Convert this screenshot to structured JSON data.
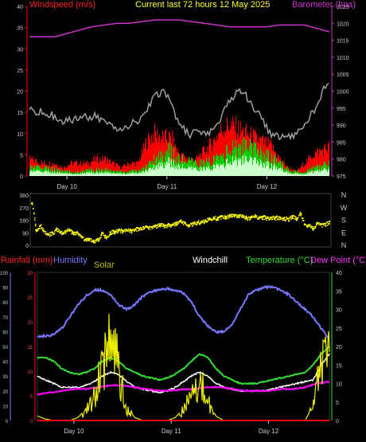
{
  "header": {
    "windspeed_label": "Windspeed (m/s)",
    "title": "Current last 72 hours 12 May 2025",
    "barometer_label": "Barometer (hpa)"
  },
  "bottom_header": {
    "rainfall_label": "Rainfall (mm)",
    "humidity_label": "Humidity",
    "solar_label": "Solar",
    "windchill_label": "Windchill",
    "temperature_label": "Temperature (°C)",
    "dewpoint_label": "Dew Point (°C)"
  },
  "colors": {
    "windspeed": "#ff0000",
    "gust": "#a0a0a0",
    "avg_wind": "#00cc00",
    "calm": "#ccffcc",
    "barometer": "#cc33cc",
    "wind_direction": "#ffff00",
    "rainfall": "#ff0000",
    "humidity": "#7777ff",
    "solar": "#eeee00",
    "windchill": "#ffffff",
    "temperature": "#33dd33",
    "dewpoint": "#ff00ff",
    "axis": "#cccccc"
  },
  "chart_data": [
    {
      "type": "line",
      "title": "Current last 72 hours 12 May 2025",
      "x_unit": "hours",
      "xlim": [
        0,
        72
      ],
      "day_labels": [
        {
          "label": "Day 10",
          "x": 9
        },
        {
          "label": "Day 11",
          "x": 33
        },
        {
          "label": "Day 12",
          "x": 57
        }
      ],
      "y_left": {
        "label": "Windspeed (m/s)",
        "ylim": [
          0,
          40
        ],
        "ticks": [
          "0",
          "5",
          "10",
          "15",
          "20",
          "25",
          "30",
          "35",
          "40"
        ]
      },
      "y_right": {
        "label": "Barometer (hpa)",
        "ylim": [
          975,
          1025
        ],
        "ticks": [
          "975",
          "980",
          "985",
          "990",
          "995",
          "1000",
          "1005",
          "1010",
          "1015",
          "1020",
          "1025"
        ]
      },
      "series": [
        {
          "key": "wind",
          "axis": "left",
          "x": [
            0,
            3,
            6,
            8,
            10,
            12,
            14,
            16,
            18,
            20,
            22,
            24,
            26,
            28,
            30,
            32,
            34,
            36,
            38,
            40,
            42,
            44,
            46,
            48,
            50,
            52,
            54,
            56,
            58,
            60,
            62,
            64,
            66,
            68,
            70,
            72
          ],
          "values": [
            4,
            3,
            3,
            2,
            3,
            3,
            3,
            4,
            4,
            3,
            2,
            3,
            3,
            8,
            10,
            9,
            9,
            5,
            4,
            4,
            6,
            8,
            11,
            12,
            11,
            10,
            9,
            8,
            7,
            4,
            2,
            1,
            3,
            5,
            6,
            7
          ]
        },
        {
          "key": "gust",
          "axis": "left",
          "x": [
            0,
            2,
            4,
            6,
            8,
            10,
            12,
            14,
            16,
            18,
            20,
            22,
            24,
            26,
            28,
            30,
            32,
            34,
            36,
            38,
            40,
            42,
            44,
            46,
            48,
            50,
            52,
            54,
            56,
            58,
            60,
            62,
            64,
            66,
            68,
            70,
            72
          ],
          "values": [
            16,
            15,
            15,
            14,
            13,
            13,
            14,
            14,
            14,
            13,
            12,
            11,
            12,
            13,
            15,
            19,
            20,
            17,
            12,
            10,
            10,
            10,
            11,
            14,
            18,
            20,
            19,
            16,
            13,
            10,
            9,
            9,
            10,
            12,
            15,
            19,
            23
          ]
        },
        {
          "key": "avg_wind",
          "axis": "left",
          "x": [
            0,
            3,
            6,
            9,
            12,
            15,
            18,
            21,
            24,
            27,
            30,
            33,
            36,
            39,
            42,
            45,
            48,
            51,
            54,
            57,
            60,
            63,
            66,
            69,
            72
          ],
          "values": [
            2,
            2,
            1.5,
            1,
            1,
            1.5,
            1.5,
            1,
            1,
            1.5,
            4,
            6,
            4,
            3,
            3,
            4,
            6,
            7,
            6,
            5,
            3,
            1,
            1,
            2,
            3
          ]
        },
        {
          "key": "barometer",
          "axis": "right",
          "x": [
            0,
            3,
            6,
            9,
            12,
            15,
            18,
            21,
            24,
            27,
            30,
            33,
            36,
            39,
            42,
            45,
            48,
            51,
            54,
            57,
            60,
            63,
            66,
            69,
            72
          ],
          "values": [
            1016,
            1016,
            1016,
            1017,
            1018,
            1019,
            1019.5,
            1020,
            1020,
            1020.5,
            1021,
            1021,
            1021,
            1020.5,
            1020,
            1019.5,
            1019,
            1019,
            1019,
            1019,
            1019.5,
            1019.5,
            1019.5,
            1018.5,
            1017.5
          ]
        }
      ]
    },
    {
      "type": "scatter",
      "title": "",
      "xlim": [
        0,
        72
      ],
      "y_left": {
        "ylim": [
          0,
          360
        ],
        "ticks": [
          "0",
          "90",
          "180",
          "270",
          "360"
        ]
      },
      "y_right_labels": [
        "N",
        "W",
        "S",
        "E",
        "N"
      ],
      "series": [
        {
          "key": "direction",
          "x": [
            0,
            1,
            2,
            3,
            4,
            5,
            6,
            7,
            8,
            9,
            10,
            11,
            12,
            13,
            14,
            15,
            16,
            17,
            18,
            19,
            20,
            21,
            22,
            23,
            24,
            25,
            26,
            27,
            28,
            29,
            30,
            31,
            32,
            33,
            34,
            35,
            36,
            37,
            38,
            39,
            40,
            41,
            42,
            43,
            44,
            45,
            46,
            47,
            48,
            49,
            50,
            51,
            52,
            53,
            54,
            55,
            56,
            57,
            58,
            59,
            60,
            61,
            62,
            63,
            64,
            65,
            66,
            67,
            68,
            69,
            70,
            71,
            72
          ],
          "values": [
            300,
            110,
            140,
            100,
            80,
            90,
            120,
            95,
            100,
            110,
            90,
            90,
            60,
            40,
            45,
            30,
            40,
            90,
            55,
            95,
            100,
            110,
            105,
            110,
            105,
            115,
            120,
            130,
            130,
            130,
            140,
            150,
            140,
            150,
            150,
            160,
            175,
            160,
            145,
            160,
            165,
            170,
            180,
            190,
            200,
            195,
            210,
            200,
            220,
            215,
            210,
            215,
            195,
            200,
            210,
            200,
            205,
            195,
            200,
            200,
            200,
            195,
            190,
            210,
            190,
            230,
            150,
            145,
            120,
            160,
            150,
            155,
            170
          ]
        }
      ]
    },
    {
      "type": "line",
      "title": "",
      "xlim": [
        0,
        72
      ],
      "y_far_left": {
        "label": "Humidity",
        "ylim": [
          0,
          100
        ],
        "ticks": [
          "0",
          "10",
          "20",
          "30",
          "40",
          "50",
          "60",
          "70",
          "80",
          "90",
          "100"
        ]
      },
      "y_left": {
        "label": "Rainfall (mm)",
        "ylim": [
          0,
          30
        ],
        "ticks": [
          "0",
          "5",
          "10",
          "15",
          "20",
          "25",
          "30"
        ]
      },
      "y_right": {
        "label": "Temperature (°C)",
        "ylim": [
          0,
          40
        ],
        "ticks": [
          "0",
          "5",
          "10",
          "15",
          "20",
          "25",
          "30",
          "35",
          "40"
        ]
      },
      "series": [
        {
          "key": "humidity",
          "axis": "far_left",
          "x": [
            0,
            2,
            4,
            6,
            8,
            10,
            12,
            14,
            16,
            18,
            20,
            22,
            24,
            26,
            28,
            30,
            32,
            34,
            36,
            38,
            40,
            42,
            44,
            46,
            48,
            50,
            52,
            54,
            56,
            58,
            60,
            62,
            64,
            66,
            68,
            70,
            72
          ],
          "values": [
            57,
            57,
            58,
            62,
            70,
            78,
            84,
            88,
            88,
            85,
            78,
            75,
            78,
            84,
            87,
            88,
            89,
            88,
            86,
            80,
            70,
            64,
            60,
            60,
            65,
            75,
            85,
            88,
            90,
            90,
            88,
            85,
            80,
            75,
            70,
            62,
            55
          ]
        },
        {
          "key": "solar",
          "axis": "far_left",
          "x": [
            0,
            2,
            4,
            6,
            8,
            10,
            12,
            14,
            16,
            18,
            20,
            22,
            24,
            26,
            28,
            30,
            32,
            34,
            36,
            38,
            40,
            42,
            44,
            46,
            48,
            50,
            52,
            54,
            56,
            58,
            60,
            62,
            64,
            66,
            68,
            70,
            72
          ],
          "values": [
            3,
            1,
            0,
            0,
            0,
            2,
            8,
            18,
            45,
            60,
            40,
            10,
            2,
            0,
            0,
            0,
            0,
            2,
            8,
            22,
            35,
            15,
            3,
            0,
            0,
            0,
            0,
            0,
            0,
            0,
            0,
            0,
            0,
            0,
            10,
            45,
            48
          ]
        },
        {
          "key": "rainfall",
          "axis": "left",
          "x": [
            0,
            72
          ],
          "values": [
            0,
            0
          ]
        },
        {
          "key": "temperature",
          "axis": "right",
          "x": [
            0,
            2,
            4,
            6,
            8,
            10,
            12,
            14,
            16,
            18,
            20,
            22,
            24,
            26,
            28,
            30,
            32,
            34,
            36,
            38,
            40,
            42,
            44,
            46,
            48,
            50,
            52,
            54,
            56,
            58,
            60,
            62,
            64,
            66,
            68,
            70,
            72
          ],
          "values": [
            17,
            17,
            16,
            14,
            13,
            12.5,
            13,
            14,
            16,
            17,
            16,
            14,
            13,
            12,
            11.5,
            11,
            11.5,
            12.5,
            14,
            16,
            18,
            17,
            14,
            12,
            11,
            10,
            10,
            10,
            10.5,
            11,
            11.5,
            12,
            12.5,
            13,
            15,
            18,
            20
          ]
        },
        {
          "key": "windchill",
          "axis": "right",
          "x": [
            0,
            2,
            4,
            6,
            8,
            10,
            12,
            14,
            16,
            18,
            20,
            22,
            24,
            26,
            28,
            30,
            32,
            34,
            36,
            38,
            40,
            42,
            44,
            46,
            48,
            50,
            52,
            54,
            56,
            58,
            60,
            62,
            64,
            66,
            68,
            70,
            72
          ],
          "values": [
            12,
            11,
            10,
            9,
            9,
            9,
            9.5,
            10.5,
            12,
            13,
            12.5,
            10.5,
            9,
            8.5,
            8,
            7.5,
            8,
            9,
            10.5,
            12,
            13,
            12,
            10,
            9,
            8.5,
            8,
            8,
            8,
            8,
            8.5,
            9,
            9.5,
            10,
            10.5,
            11,
            15,
            18
          ]
        },
        {
          "key": "dewpoint",
          "axis": "right",
          "x": [
            0,
            3,
            6,
            9,
            12,
            15,
            18,
            21,
            24,
            27,
            30,
            33,
            36,
            39,
            42,
            45,
            48,
            51,
            54,
            57,
            60,
            63,
            66,
            69,
            72
          ],
          "values": [
            7,
            7.5,
            8,
            8.5,
            8.5,
            9,
            9.5,
            9.5,
            9,
            8.5,
            8,
            8,
            8.5,
            8.5,
            9,
            9,
            8.5,
            8,
            8,
            8,
            8.5,
            8.5,
            9,
            10,
            10.5
          ]
        }
      ]
    }
  ]
}
